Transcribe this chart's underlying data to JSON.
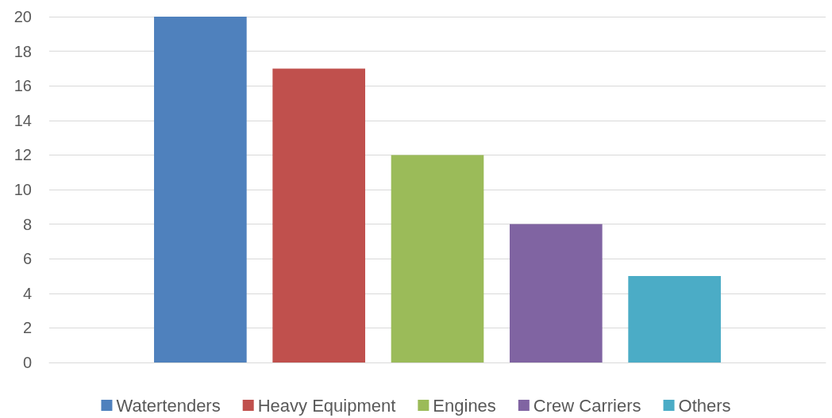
{
  "chart_data": {
    "type": "bar",
    "categories": [
      null
    ],
    "series": [
      {
        "name": "Watertenders",
        "color": "#4f81bd",
        "values": [
          20
        ]
      },
      {
        "name": "Heavy Equipment",
        "color": "#c0504d",
        "values": [
          17
        ]
      },
      {
        "name": "Engines",
        "color": "#9bbb59",
        "values": [
          12
        ]
      },
      {
        "name": "Crew Carriers",
        "color": "#8064a2",
        "values": [
          8
        ]
      },
      {
        "name": "Others",
        "color": "#4bacc6",
        "values": [
          5
        ]
      }
    ],
    "ylim": [
      0,
      20
    ],
    "yticks": [
      0,
      2,
      4,
      6,
      8,
      10,
      12,
      14,
      16,
      18,
      20
    ],
    "grid": "y",
    "legend": "bottom"
  }
}
